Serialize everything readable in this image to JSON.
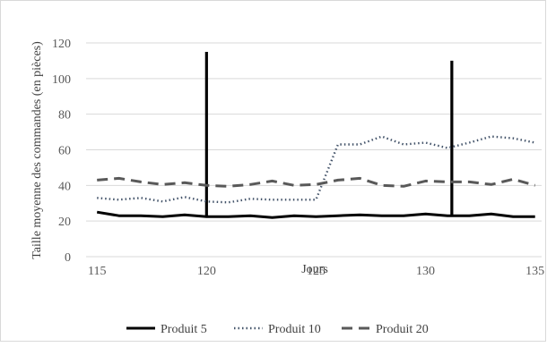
{
  "chart_data": {
    "type": "line",
    "title": "",
    "xlabel": "Jours",
    "ylabel": "Taille moyenne des commandes (en pièces)",
    "xlim": [
      114.5,
      135.3
    ],
    "ylim": [
      0,
      120
    ],
    "x_ticks": [
      "115",
      "120",
      "125",
      "130",
      "135"
    ],
    "y_ticks": [
      "0",
      "20",
      "40",
      "60",
      "80",
      "100",
      "120"
    ],
    "grid": "horizontal",
    "legend_position": "bottom",
    "x": [
      115,
      116,
      117,
      118,
      119,
      120,
      121,
      122,
      123,
      124,
      125,
      126,
      127,
      128,
      129,
      130,
      131,
      132,
      133,
      134,
      135
    ],
    "series": [
      {
        "name": "Produit 5",
        "style": "solid",
        "color": "#000000",
        "values": [
          25,
          23,
          23,
          22.5,
          23.5,
          22.5,
          22.5,
          23,
          22,
          23,
          22.5,
          23,
          23.5,
          23,
          23,
          24,
          23,
          23,
          24,
          22.5,
          22.5
        ],
        "spikes": [
          {
            "x": 120,
            "y": 115
          },
          {
            "x": 131.2,
            "y": 110
          }
        ]
      },
      {
        "name": "Produit 10",
        "style": "dotted",
        "color": "#44546a",
        "values": [
          33,
          32,
          33,
          31,
          33.5,
          31,
          30.5,
          32.5,
          32,
          32,
          32,
          63,
          63,
          67.5,
          63,
          64,
          61,
          64,
          67.5,
          66.5,
          64
        ]
      },
      {
        "name": "Produit 20",
        "style": "dashed",
        "color": "#595959",
        "values": [
          43,
          44,
          42,
          40.5,
          41.5,
          40,
          39.5,
          40.5,
          42.5,
          40,
          40.5,
          43,
          44,
          40,
          39.5,
          42.5,
          42,
          42,
          40.5,
          43.5,
          40
        ]
      }
    ]
  }
}
